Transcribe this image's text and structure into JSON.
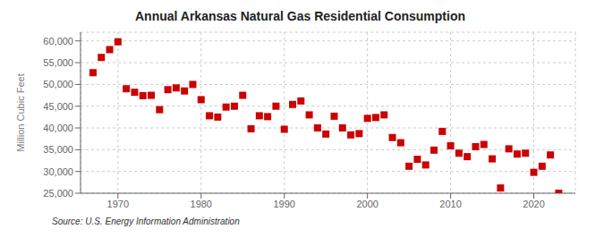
{
  "chart_data": {
    "type": "scatter",
    "title": "Annual Arkansas Natural Gas Residential Consumption",
    "ylabel": "Million Cubic Feet",
    "annotation": "Source: U.S. Energy Information Administration",
    "x": [
      1967,
      1968,
      1969,
      1970,
      1971,
      1972,
      1973,
      1974,
      1975,
      1976,
      1977,
      1978,
      1979,
      1980,
      1981,
      1982,
      1983,
      1984,
      1985,
      1986,
      1987,
      1988,
      1989,
      1990,
      1991,
      1992,
      1993,
      1994,
      1995,
      1996,
      1997,
      1998,
      1999,
      2000,
      2001,
      2002,
      2003,
      2004,
      2005,
      2006,
      2007,
      2008,
      2009,
      2010,
      2011,
      2012,
      2013,
      2014,
      2015,
      2016,
      2017,
      2018,
      2019,
      2020,
      2021,
      2022,
      2023
    ],
    "values": [
      52700,
      56200,
      58000,
      59800,
      49000,
      48200,
      47400,
      47500,
      44200,
      48800,
      49200,
      48500,
      50000,
      46500,
      42800,
      42500,
      44800,
      45000,
      47500,
      39800,
      42800,
      42600,
      45000,
      39700,
      45400,
      46200,
      43000,
      40000,
      38600,
      42700,
      40000,
      38400,
      38700,
      42200,
      42400,
      43000,
      37800,
      36600,
      31200,
      32800,
      31500,
      34900,
      39200,
      35900,
      34200,
      33400,
      35700,
      36200,
      32900,
      26200,
      35200,
      34000,
      34200,
      29800,
      31200,
      33800,
      25000
    ],
    "color": "#cc0000",
    "marker": "square",
    "xlim": [
      1965.5,
      2025
    ],
    "xticks": [
      1970,
      1980,
      1990,
      2000,
      2010,
      2020
    ],
    "ylim": [
      25000,
      62000
    ],
    "yticks": [
      {
        "value": 25000,
        "label": "25,000"
      },
      {
        "value": 30000,
        "label": "30,000"
      },
      {
        "value": 35000,
        "label": "35,000"
      },
      {
        "value": 40000,
        "label": "40,000"
      },
      {
        "value": 45000,
        "label": "45,000"
      },
      {
        "value": 50000,
        "label": "50,000"
      },
      {
        "value": 55000,
        "label": "55,000"
      },
      {
        "value": 60000,
        "label": "60,000"
      }
    ],
    "grid": true
  }
}
